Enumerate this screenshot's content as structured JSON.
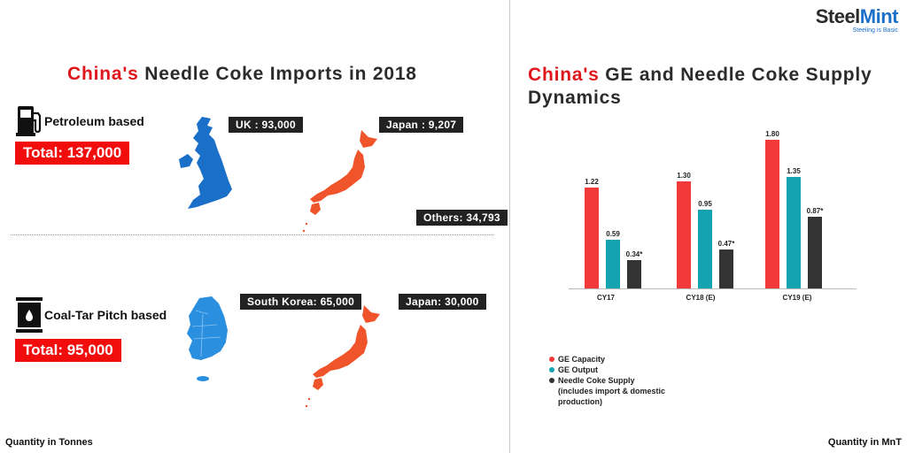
{
  "logo": {
    "name_a": "Steel",
    "name_b": "Mint",
    "tagline": "Steeling is Basic"
  },
  "left_panel": {
    "title_highlight": "China's",
    "title_rest": " Needle Coke Imports in 2018",
    "petroleum": {
      "label": "Petroleum based",
      "icon": "fuel-pump-icon",
      "total": "Total: 137,000",
      "tags": [
        "UK : 93,000",
        "Japan : 9,207",
        "Others: 34,793"
      ]
    },
    "coal_tar": {
      "label": "Coal-Tar Pitch based",
      "icon": "oil-barrel-icon",
      "total": "Total: 95,000",
      "tags": [
        "South Korea: 65,000",
        "Japan: 30,000"
      ]
    },
    "footer": "Quantity in Tonnes"
  },
  "right_panel": {
    "title_highlight": "China's",
    "title_rest": " GE and Needle Coke Supply Dynamics",
    "footer": "Quantity in MnT",
    "legend": [
      {
        "label": "GE Capacity",
        "color": "#f23a3a"
      },
      {
        "label": "GE Output",
        "color": "#14a3b0"
      },
      {
        "label": "Needle Coke Supply (includes import & domestic production)",
        "color": "#333333"
      }
    ]
  },
  "colors": {
    "red": "#e0161d",
    "uk_blue": "#1a6fc9",
    "korea_blue": "#2b8fe0",
    "japan_orange": "#f0542a",
    "dark_tag": "#222222"
  },
  "chart_data": {
    "type": "bar",
    "title": "China's GE and Needle Coke Supply Dynamics",
    "categories": [
      "CY17",
      "CY18 (E)",
      "CY19 (E)"
    ],
    "series": [
      {
        "name": "GE Capacity",
        "values": [
          1.22,
          1.3,
          1.8
        ],
        "labels": [
          "1.22",
          "1.30",
          "1.80"
        ],
        "color": "#f23a3a"
      },
      {
        "name": "GE Output",
        "values": [
          0.59,
          0.95,
          1.35
        ],
        "labels": [
          "0.59",
          "0.95",
          "1.35"
        ],
        "color": "#14a3b0"
      },
      {
        "name": "Needle Coke Supply (includes import & domestic production)",
        "values": [
          0.34,
          0.47,
          0.87
        ],
        "labels": [
          "0.34*",
          "0.47*",
          "0.87*"
        ],
        "color": "#333333"
      }
    ],
    "xlabel": "",
    "ylabel": "Quantity in MnT",
    "ylim": [
      0,
      1.8
    ],
    "grid": false,
    "legend_position": "bottom-left"
  }
}
